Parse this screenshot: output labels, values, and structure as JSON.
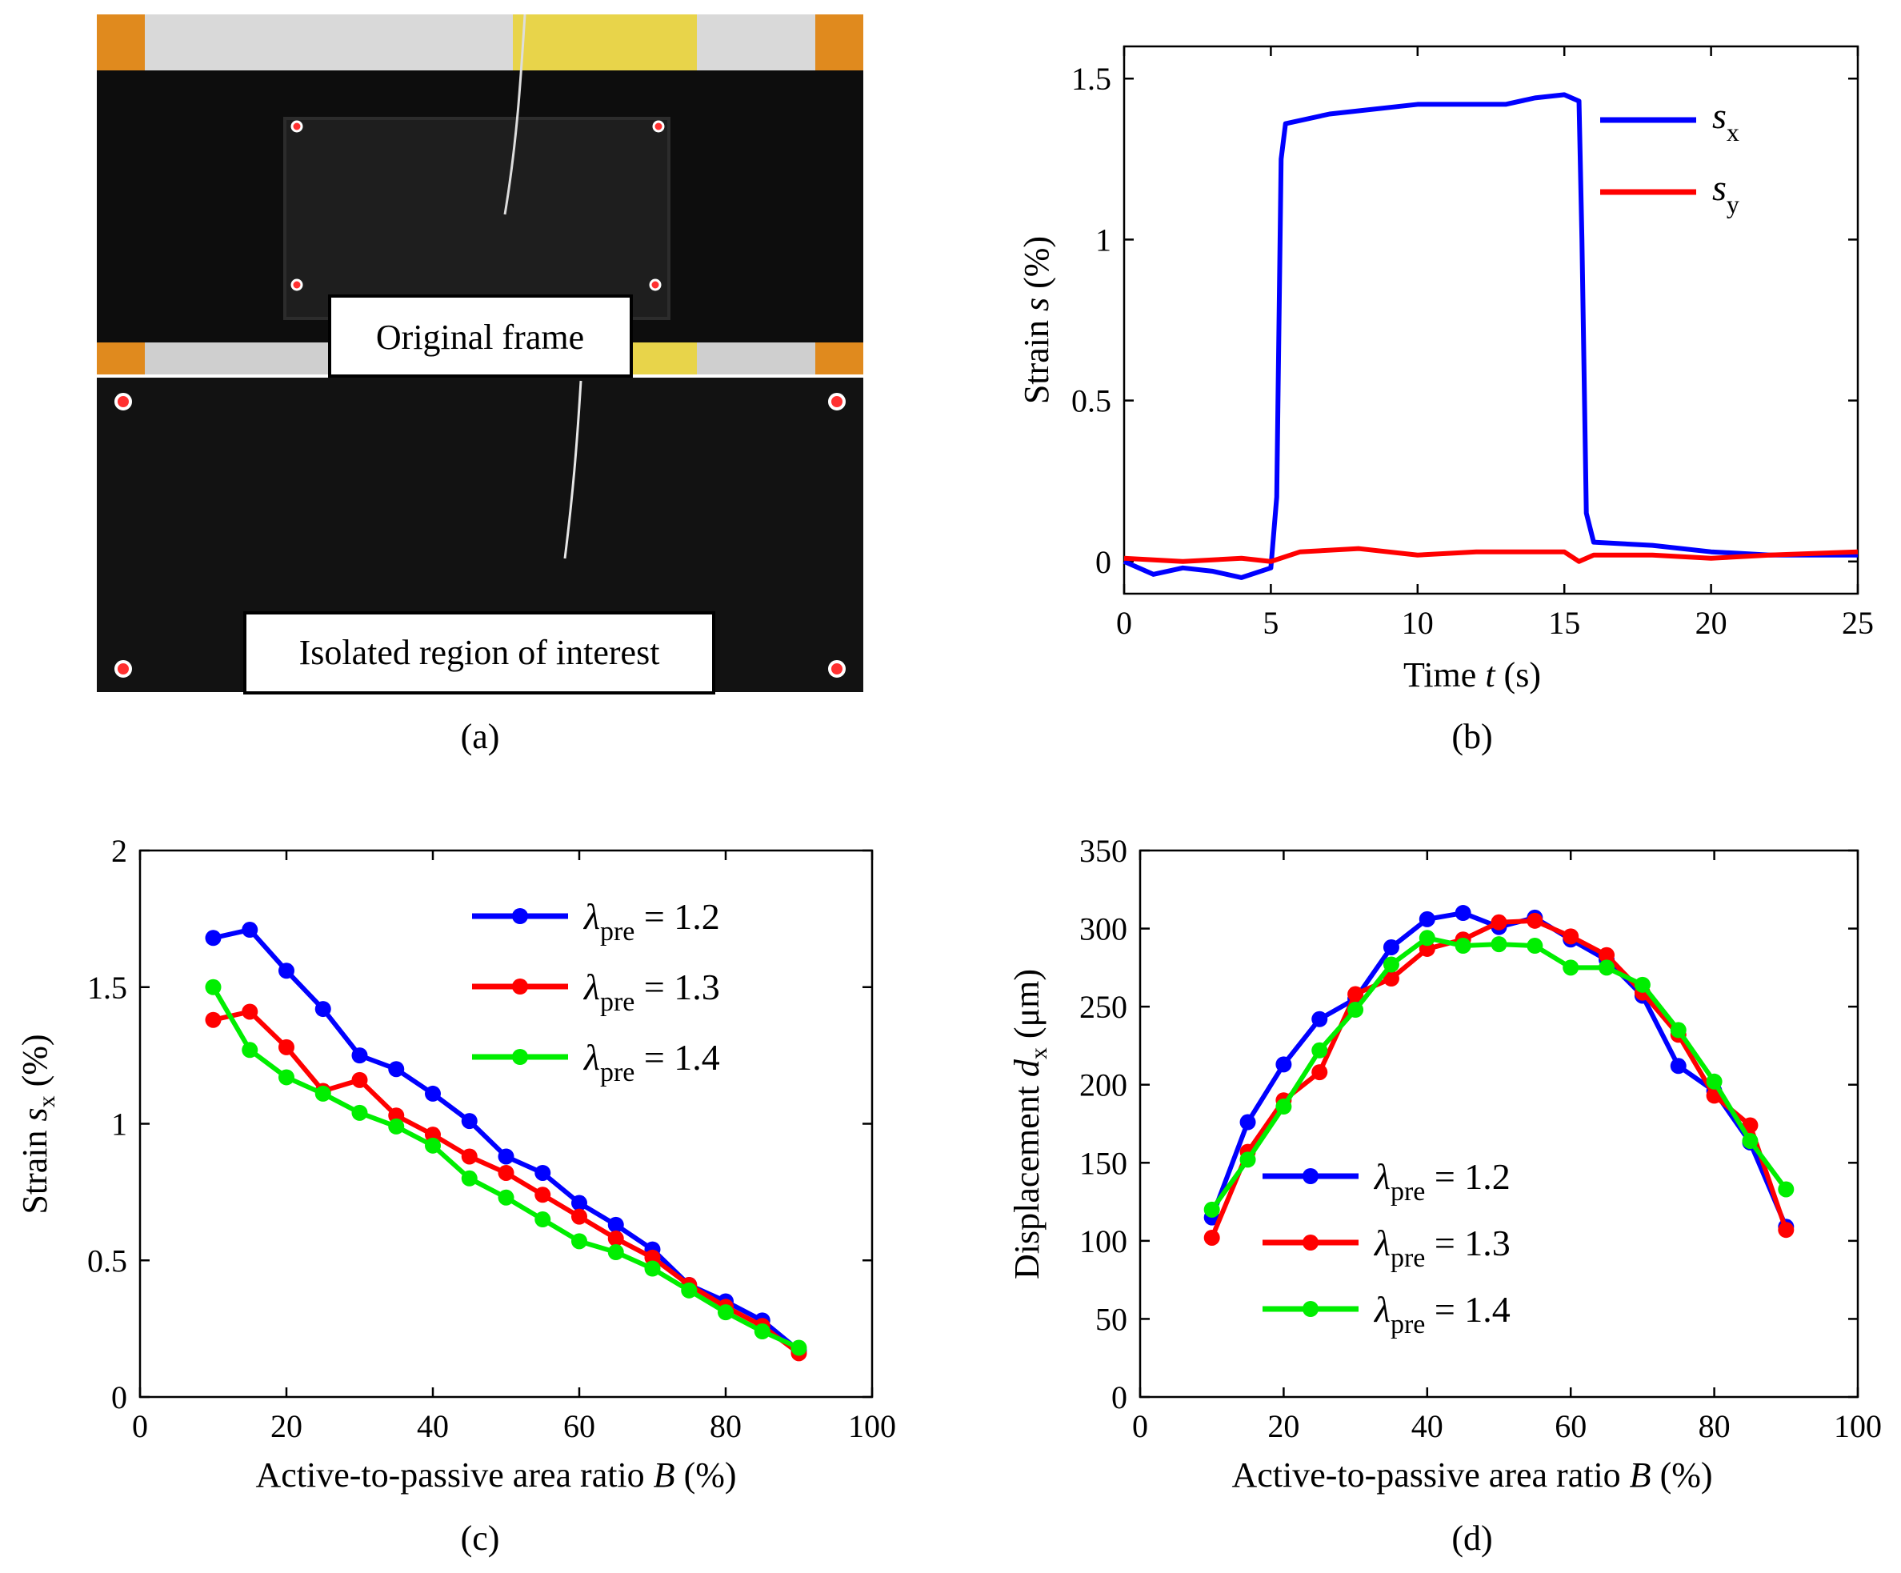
{
  "panels": {
    "a": {
      "label": "(a)",
      "top_caption": "Original frame",
      "bottom_caption": "Isolated region of interest"
    },
    "b": {
      "label": "(b)"
    },
    "c": {
      "label": "(c)"
    },
    "d": {
      "label": "(d)"
    }
  },
  "colors": {
    "blue": "#0000ff",
    "red": "#ff0000",
    "green": "#00ee00"
  },
  "chart_data": [
    {
      "id": "b",
      "type": "line",
      "title": "",
      "xlabel": "Time t (s)",
      "ylabel": "Strain s (%)",
      "xlim": [
        0,
        25
      ],
      "ylim": [
        -0.1,
        1.6
      ],
      "xticks": [
        0,
        5,
        10,
        15,
        20,
        25
      ],
      "yticks": [
        0,
        0.5,
        1,
        1.5
      ],
      "ytick_labels": [
        "0",
        "0.5",
        "1",
        "1.5"
      ],
      "legend_position": "top-right",
      "series": [
        {
          "name": "s_x",
          "label_main": "s",
          "label_sub": "x",
          "color": "#0000ff",
          "x": [
            0,
            1,
            2,
            3,
            4,
            5,
            5.2,
            5.35,
            5.5,
            7,
            10,
            13,
            14,
            15,
            15.5,
            15.6,
            15.75,
            16,
            18,
            20,
            22,
            25
          ],
          "y": [
            0.0,
            -0.04,
            -0.02,
            -0.03,
            -0.05,
            -0.02,
            0.2,
            1.25,
            1.36,
            1.39,
            1.42,
            1.42,
            1.44,
            1.45,
            1.43,
            1.0,
            0.15,
            0.06,
            0.05,
            0.03,
            0.02,
            0.02
          ]
        },
        {
          "name": "s_y",
          "label_main": "s",
          "label_sub": "y",
          "color": "#ff0000",
          "x": [
            0,
            2,
            4,
            5,
            6,
            8,
            10,
            12,
            14,
            15,
            15.5,
            16,
            18,
            20,
            22,
            25
          ],
          "y": [
            0.01,
            0.0,
            0.01,
            0.0,
            0.03,
            0.04,
            0.02,
            0.03,
            0.03,
            0.03,
            0.0,
            0.02,
            0.02,
            0.01,
            0.02,
            0.03
          ]
        }
      ]
    },
    {
      "id": "c",
      "type": "line",
      "title": "",
      "xlabel": "Active-to-passive area ratio B (%)",
      "ylabel": "Strain s_x (%)",
      "xlim": [
        0,
        100
      ],
      "ylim": [
        0,
        2
      ],
      "xticks": [
        0,
        20,
        40,
        60,
        80,
        100
      ],
      "yticks": [
        0,
        0.5,
        1,
        1.5,
        2
      ],
      "ytick_labels": [
        "0",
        "0.5",
        "1",
        "1.5",
        "2"
      ],
      "legend_position": "top-right",
      "x": [
        10,
        15,
        20,
        25,
        30,
        35,
        40,
        45,
        50,
        55,
        60,
        65,
        70,
        75,
        80,
        85,
        90
      ],
      "series": [
        {
          "name": "λpre = 1.2",
          "label_sub": "pre",
          "label_value": " = 1.2",
          "color": "#0000ff",
          "values": [
            1.68,
            1.71,
            1.56,
            1.42,
            1.25,
            1.2,
            1.11,
            1.01,
            0.88,
            0.82,
            0.71,
            0.63,
            0.54,
            0.41,
            0.35,
            0.28,
            0.17
          ]
        },
        {
          "name": "λpre = 1.3",
          "label_sub": "pre",
          "label_value": " = 1.3",
          "color": "#ff0000",
          "values": [
            1.38,
            1.41,
            1.28,
            1.12,
            1.16,
            1.03,
            0.96,
            0.88,
            0.82,
            0.74,
            0.66,
            0.58,
            0.51,
            0.41,
            0.33,
            0.26,
            0.16
          ]
        },
        {
          "name": "λpre = 1.4",
          "label_sub": "pre",
          "label_value": " = 1.4",
          "color": "#00ee00",
          "values": [
            1.5,
            1.27,
            1.17,
            1.11,
            1.04,
            0.99,
            0.92,
            0.8,
            0.73,
            0.65,
            0.57,
            0.53,
            0.47,
            0.39,
            0.31,
            0.24,
            0.18
          ]
        }
      ]
    },
    {
      "id": "d",
      "type": "line",
      "title": "",
      "xlabel": "Active-to-passive area ratio B (%)",
      "ylabel": "Displacement d_x (μm)",
      "xlim": [
        0,
        100
      ],
      "ylim": [
        0,
        350
      ],
      "xticks": [
        0,
        20,
        40,
        60,
        80,
        100
      ],
      "yticks": [
        0,
        50,
        100,
        150,
        200,
        250,
        300,
        350
      ],
      "ytick_labels": [
        "0",
        "50",
        "100",
        "150",
        "200",
        "250",
        "300",
        "350"
      ],
      "legend_position": "bottom-center",
      "x": [
        10,
        15,
        20,
        25,
        30,
        35,
        40,
        45,
        50,
        55,
        60,
        65,
        70,
        75,
        80,
        85,
        90
      ],
      "series": [
        {
          "name": "λpre = 1.2",
          "label_sub": "pre",
          "label_value": " = 1.2",
          "color": "#0000ff",
          "values": [
            115,
            176,
            213,
            242,
            255,
            288,
            306,
            310,
            301,
            307,
            293,
            280,
            257,
            212,
            196,
            163,
            109
          ]
        },
        {
          "name": "λpre = 1.3",
          "label_sub": "pre",
          "label_value": " = 1.3",
          "color": "#ff0000",
          "values": [
            102,
            157,
            190,
            208,
            258,
            268,
            287,
            293,
            304,
            305,
            295,
            283,
            259,
            232,
            193,
            174,
            107
          ]
        },
        {
          "name": "λpre = 1.4",
          "label_sub": "pre",
          "label_value": " = 1.4",
          "color": "#00ee00",
          "values": [
            120,
            152,
            186,
            222,
            248,
            277,
            294,
            289,
            290,
            289,
            275,
            275,
            264,
            235,
            202,
            164,
            133
          ]
        }
      ]
    }
  ]
}
